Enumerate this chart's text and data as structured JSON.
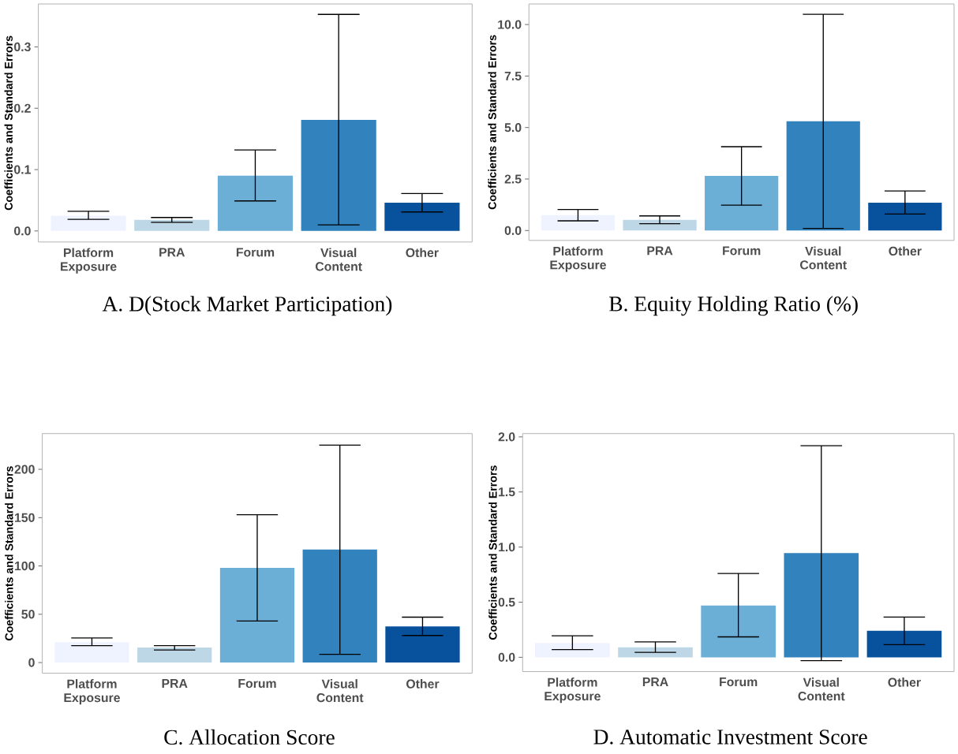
{
  "chart_data": [
    {
      "type": "bar",
      "title": "A. D(Stock Market Participation)",
      "ylabel": "Coefficients and Standard Errors",
      "categories": [
        "Platform Exposure",
        "PRA",
        "Forum",
        "Visual Content",
        "Other"
      ],
      "values": [
        0.025,
        0.018,
        0.09,
        0.181,
        0.046
      ],
      "colors": [
        "#eff3ff",
        "#bdd7e7",
        "#6baed6",
        "#3182bd",
        "#08519c"
      ],
      "errors": [
        [
          0.019,
          0.032
        ],
        [
          0.014,
          0.022
        ],
        [
          0.049,
          0.132
        ],
        [
          0.01,
          0.353
        ],
        [
          0.031,
          0.061
        ]
      ],
      "ylim": [
        -0.018,
        0.37
      ],
      "yticks": [
        {
          "value": 0,
          "label": "0.0"
        },
        0.1,
        0.2,
        0.3
      ]
    },
    {
      "type": "bar",
      "title": "B. Equity Holding Ratio (%)",
      "ylabel": "Coefficients and Standard Errors",
      "categories": [
        "Platform Exposure",
        "PRA",
        "Forum",
        "Visual Content",
        "Other"
      ],
      "values": [
        0.75,
        0.52,
        2.65,
        5.3,
        1.35
      ],
      "colors": [
        "#eff3ff",
        "#bdd7e7",
        "#6baed6",
        "#3182bd",
        "#08519c"
      ],
      "errors": [
        [
          0.47,
          1.02
        ],
        [
          0.33,
          0.71
        ],
        [
          1.23,
          4.07
        ],
        [
          0.1,
          10.5
        ],
        [
          0.8,
          1.92
        ]
      ],
      "ylim": [
        -0.48,
        11.0
      ],
      "yticks": [
        {
          "value": 0,
          "label": "0.0"
        },
        2.5,
        {
          "value": 5,
          "label": "5.0"
        },
        7.5,
        {
          "value": 10,
          "label": "10.0"
        }
      ]
    },
    {
      "type": "bar",
      "title": "C. Allocation Score",
      "ylabel": "Coefficients and Standard Errors",
      "categories": [
        "Platform Exposure",
        "PRA",
        "Forum",
        "Visual Content",
        "Other"
      ],
      "values": [
        21,
        15.5,
        98,
        117,
        37.5
      ],
      "colors": [
        "#eff3ff",
        "#bdd7e7",
        "#6baed6",
        "#3182bd",
        "#08519c"
      ],
      "errors": [
        [
          17.5,
          25.5
        ],
        [
          13,
          17.5
        ],
        [
          43,
          153
        ],
        [
          8.5,
          225
        ],
        [
          28,
          47
        ]
      ],
      "ylim": [
        -11,
        237
      ],
      "yticks": [
        0,
        50,
        100,
        150,
        200
      ]
    },
    {
      "type": "bar",
      "title": "D. Automatic Investment Score",
      "ylabel": "Coefficients and Standard Errors",
      "categories": [
        "Platform Exposure",
        "PRA",
        "Forum",
        "Visual Content",
        "Other"
      ],
      "values": [
        0.13,
        0.09,
        0.47,
        0.945,
        0.24
      ],
      "colors": [
        "#eff3ff",
        "#bdd7e7",
        "#6baed6",
        "#3182bd",
        "#08519c"
      ],
      "errors": [
        [
          0.07,
          0.195
        ],
        [
          0.045,
          0.14
        ],
        [
          0.185,
          0.76
        ],
        [
          -0.03,
          1.92
        ],
        [
          0.115,
          0.365
        ]
      ],
      "ylim": [
        -0.13,
        2.03
      ],
      "yticks": [
        {
          "value": 0,
          "label": "0.0"
        },
        0.5,
        {
          "value": 1,
          "label": "1.0"
        },
        1.5,
        {
          "value": 2,
          "label": "2.0"
        }
      ]
    }
  ]
}
